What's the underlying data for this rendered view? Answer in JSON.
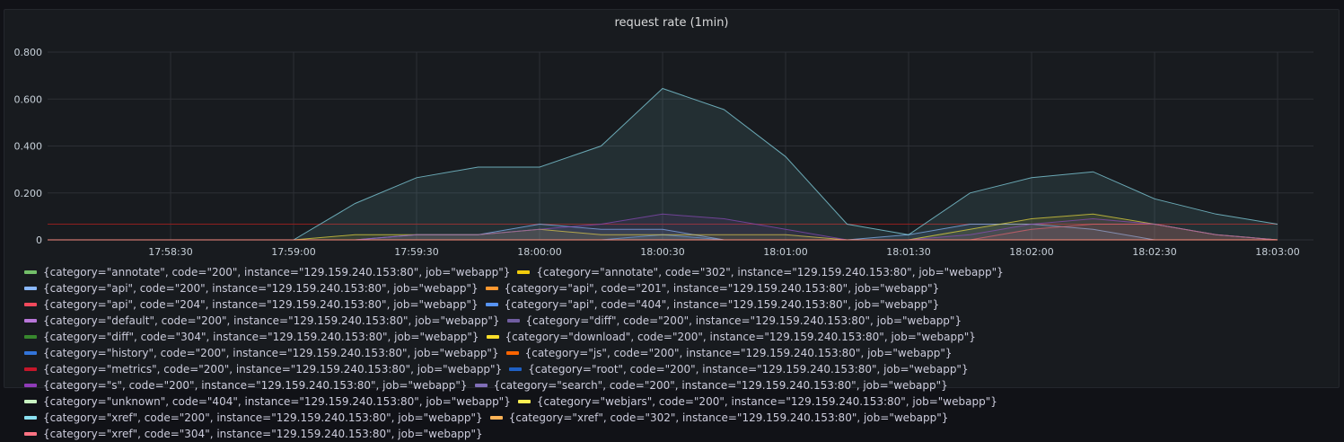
{
  "chart_data": {
    "type": "area",
    "title": "request rate (1min)",
    "x": [
      "17:58:00",
      "17:58:15",
      "17:58:30",
      "17:58:45",
      "17:59:00",
      "17:59:15",
      "17:59:30",
      "17:59:45",
      "18:00:00",
      "18:00:15",
      "18:00:30",
      "18:00:45",
      "18:01:00",
      "18:01:15",
      "18:01:30",
      "18:01:45",
      "18:02:00",
      "18:02:15",
      "18:02:30",
      "18:02:45",
      "18:03:00"
    ],
    "xticks": [
      "17:58:30",
      "17:59:00",
      "17:59:30",
      "18:00:00",
      "18:00:30",
      "18:01:00",
      "18:01:30",
      "18:02:00",
      "18:02:30",
      "18:03:00"
    ],
    "yticks": [
      "0",
      "0.200",
      "0.400",
      "0.600",
      "0.800"
    ],
    "ylim": [
      0,
      0.8
    ],
    "grid": true,
    "legend_position": "bottom",
    "threshold": {
      "value": 0.067,
      "color": "#8f1f1f"
    },
    "series": [
      {
        "name": "{category=\"annotate\", code=\"200\", instance=\"129.159.240.153:80\", job=\"webapp\"}",
        "color": "#73bf69",
        "values": [
          0,
          0,
          0,
          0,
          0,
          0,
          0,
          0,
          0,
          0,
          0,
          0,
          0,
          0,
          0,
          0,
          0,
          0,
          0,
          0,
          0
        ]
      },
      {
        "name": "{category=\"annotate\", code=\"302\", instance=\"129.159.240.153:80\", job=\"webapp\"}",
        "color": "#f2cc0c",
        "values": [
          0,
          0,
          0,
          0,
          0,
          0,
          0,
          0,
          0,
          0,
          0,
          0,
          0,
          0,
          0,
          0,
          0,
          0,
          0,
          0,
          0
        ]
      },
      {
        "name": "{category=\"api\", code=\"200\", instance=\"129.159.240.153:80\", job=\"webapp\"}",
        "color": "#8ab8ff",
        "values": [
          0,
          0,
          0,
          0,
          0,
          0,
          0.022,
          0.022,
          0.067,
          0.045,
          0.045,
          0,
          0,
          0,
          0.022,
          0.067,
          0.067,
          0.045,
          0,
          0,
          0
        ]
      },
      {
        "name": "{category=\"api\", code=\"201\", instance=\"129.159.240.153:80\", job=\"webapp\"}",
        "color": "#ff9830",
        "values": [
          0,
          0,
          0,
          0,
          0,
          0,
          0,
          0,
          0,
          0,
          0,
          0,
          0,
          0,
          0,
          0,
          0,
          0,
          0,
          0,
          0
        ]
      },
      {
        "name": "{category=\"api\", code=\"204\", instance=\"129.159.240.153:80\", job=\"webapp\"}",
        "color": "#f2495c",
        "values": [
          0,
          0,
          0,
          0,
          0,
          0,
          0,
          0,
          0,
          0,
          0,
          0,
          0,
          0,
          0,
          0,
          0.045,
          0.067,
          0.067,
          0.022,
          0
        ]
      },
      {
        "name": "{category=\"api\", code=\"404\", instance=\"129.159.240.153:80\", job=\"webapp\"}",
        "color": "#5794f2",
        "values": [
          0,
          0,
          0,
          0,
          0,
          0,
          0,
          0,
          0,
          0,
          0.022,
          0,
          0,
          0,
          0,
          0,
          0,
          0,
          0,
          0,
          0
        ]
      },
      {
        "name": "{category=\"default\", code=\"200\", instance=\"129.159.240.153:80\", job=\"webapp\"}",
        "color": "#b877d9",
        "values": [
          0,
          0,
          0,
          0,
          0,
          0,
          0,
          0,
          0,
          0,
          0,
          0,
          0,
          0,
          0,
          0,
          0,
          0,
          0,
          0,
          0
        ]
      },
      {
        "name": "{category=\"diff\", code=\"200\", instance=\"129.159.240.153:80\", job=\"webapp\"}",
        "color": "#705da0",
        "values": [
          0,
          0,
          0,
          0,
          0,
          0,
          0,
          0,
          0,
          0,
          0,
          0,
          0,
          0,
          0,
          0,
          0,
          0,
          0,
          0,
          0
        ]
      },
      {
        "name": "{category=\"diff\", code=\"304\", instance=\"129.159.240.153:80\", job=\"webapp\"}",
        "color": "#37872d",
        "values": [
          0,
          0,
          0,
          0,
          0,
          0,
          0,
          0,
          0,
          0,
          0,
          0,
          0,
          0,
          0,
          0,
          0,
          0,
          0,
          0,
          0
        ]
      },
      {
        "name": "{category=\"download\", code=\"200\", instance=\"129.159.240.153:80\", job=\"webapp\"}",
        "color": "#fade2a",
        "values": [
          0,
          0,
          0,
          0,
          0,
          0.022,
          0.022,
          0.022,
          0.045,
          0.022,
          0.022,
          0.022,
          0.022,
          0,
          0,
          0.045,
          0.09,
          0.11,
          0.067,
          0.022,
          0
        ]
      },
      {
        "name": "{category=\"history\", code=\"200\", instance=\"129.159.240.153:80\", job=\"webapp\"}",
        "color": "#3274d9",
        "values": [
          0,
          0,
          0,
          0,
          0,
          0,
          0,
          0,
          0,
          0,
          0,
          0,
          0,
          0,
          0,
          0,
          0,
          0,
          0,
          0,
          0
        ]
      },
      {
        "name": "{category=\"js\", code=\"200\", instance=\"129.159.240.153:80\", job=\"webapp\"}",
        "color": "#fa6400",
        "values": [
          0,
          0,
          0,
          0,
          0,
          0,
          0,
          0,
          0,
          0,
          0,
          0,
          0,
          0,
          0,
          0,
          0,
          0,
          0,
          0,
          0
        ]
      },
      {
        "name": "{category=\"metrics\", code=\"200\", instance=\"129.159.240.153:80\", job=\"webapp\"}",
        "color": "#c4162a",
        "values": [
          0,
          0,
          0,
          0,
          0,
          0,
          0,
          0,
          0,
          0,
          0,
          0,
          0,
          0,
          0,
          0,
          0,
          0,
          0,
          0,
          0
        ]
      },
      {
        "name": "{category=\"root\", code=\"200\", instance=\"129.159.240.153:80\", job=\"webapp\"}",
        "color": "#1f60c4",
        "values": [
          0,
          0,
          0,
          0,
          0,
          0,
          0,
          0,
          0,
          0,
          0,
          0,
          0,
          0,
          0,
          0,
          0,
          0,
          0,
          0,
          0
        ]
      },
      {
        "name": "{category=\"s\", code=\"200\", instance=\"129.159.240.153:80\", job=\"webapp\"}",
        "color": "#8f3bb8",
        "values": [
          0,
          0,
          0,
          0,
          0,
          0,
          0.022,
          0.022,
          0.045,
          0.067,
          0.11,
          0.09,
          0.045,
          0,
          0,
          0.022,
          0.067,
          0.09,
          0.067,
          0.022,
          0
        ]
      },
      {
        "name": "{category=\"search\", code=\"200\", instance=\"129.159.240.153:80\", job=\"webapp\"}",
        "color": "#806eb7",
        "values": [
          0,
          0,
          0,
          0,
          0,
          0,
          0,
          0,
          0,
          0,
          0,
          0,
          0,
          0,
          0,
          0,
          0,
          0,
          0,
          0,
          0
        ]
      },
      {
        "name": "{category=\"unknown\", code=\"404\", instance=\"129.159.240.153:80\", job=\"webapp\"}",
        "color": "#c8f2c2",
        "values": [
          0,
          0,
          0,
          0,
          0,
          0,
          0,
          0,
          0,
          0,
          0,
          0,
          0,
          0,
          0,
          0,
          0,
          0,
          0,
          0,
          0
        ]
      },
      {
        "name": "{category=\"webjars\", code=\"200\", instance=\"129.159.240.153:80\", job=\"webapp\"}",
        "color": "#ffee52",
        "values": [
          0,
          0,
          0,
          0,
          0,
          0,
          0,
          0,
          0,
          0,
          0,
          0,
          0,
          0,
          0,
          0,
          0,
          0,
          0,
          0,
          0
        ]
      },
      {
        "name": "{category=\"xref\", code=\"200\", instance=\"129.159.240.153:80\", job=\"webapp\"}",
        "color": "#8ae0f0",
        "values": [
          0,
          0,
          0,
          0,
          0,
          0.155,
          0.265,
          0.31,
          0.31,
          0.4,
          0.645,
          0.555,
          0.355,
          0.067,
          0.022,
          0.2,
          0.265,
          0.29,
          0.175,
          0.11,
          0.067
        ]
      },
      {
        "name": "{category=\"xref\", code=\"302\", instance=\"129.159.240.153:80\", job=\"webapp\"}",
        "color": "#ffb357",
        "values": [
          0,
          0,
          0,
          0,
          0,
          0,
          0,
          0,
          0,
          0,
          0,
          0,
          0,
          0,
          0,
          0,
          0,
          0,
          0,
          0,
          0
        ]
      },
      {
        "name": "{category=\"xref\", code=\"304\", instance=\"129.159.240.153:80\", job=\"webapp\"}",
        "color": "#ff7383",
        "values": [
          0,
          0,
          0,
          0,
          0,
          0,
          0,
          0,
          0,
          0,
          0,
          0,
          0,
          0,
          0,
          0,
          0,
          0,
          0,
          0,
          0
        ]
      }
    ]
  }
}
